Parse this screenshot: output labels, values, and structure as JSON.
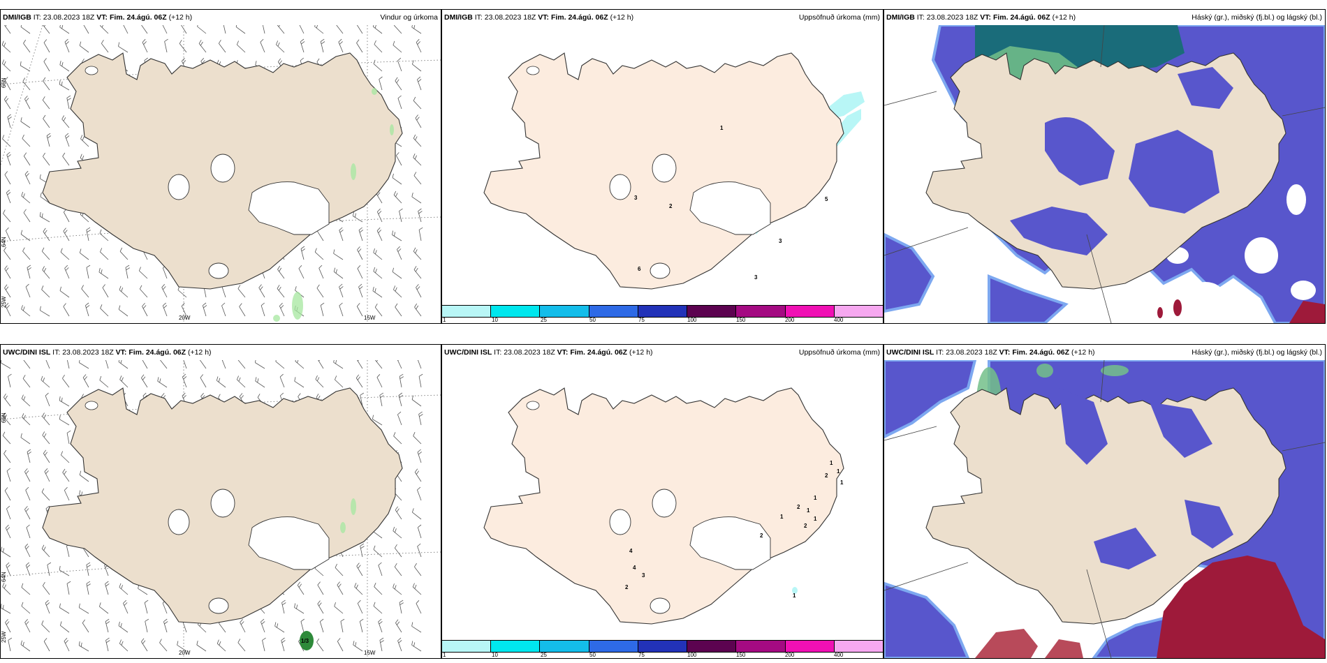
{
  "common": {
    "it_label": "IT:",
    "it_value": "23.08.2023 18Z",
    "vt_label": "VT:",
    "vt_value": "Fim. 24.ágú. 06Z",
    "lead": "(+12 h)"
  },
  "panels": [
    {
      "model": "DMI/IGB",
      "title": "Vindur og úrkoma",
      "kind": "wind"
    },
    {
      "model": "DMI/IGB",
      "title": "Uppsöfnuð úrkoma (mm)",
      "kind": "accum"
    },
    {
      "model": "DMI/IGB",
      "title": "Háský (gr.), miðský (fj.bl.) og lágský (bl.)",
      "kind": "cloud"
    },
    {
      "model": "UWC/DINI ISL",
      "title": "Vindur og úrkoma",
      "kind": "wind"
    },
    {
      "model": "UWC/DINI ISL",
      "title": "Uppsöfnuð úrkoma (mm)",
      "kind": "accum"
    },
    {
      "model": "UWC/DINI ISL",
      "title": "Háský (gr.), miðský (fj.bl.) og lágský (bl.)",
      "kind": "cloud"
    }
  ],
  "map_labels": {
    "lon_20w": "20W",
    "lon_15w": "15W",
    "lat_66n": "66N",
    "lat_64n": "64N",
    "lon_25w": "25W"
  },
  "accum_values": {
    "top": [
      "1",
      "3",
      "2",
      "5",
      "3",
      "3",
      "6"
    ],
    "bottom": [
      "1",
      "2",
      "1",
      "1",
      "1",
      "2",
      "1",
      "1",
      "1",
      "2",
      "2",
      "4",
      "4",
      "3",
      "2",
      "1"
    ]
  },
  "wind_precip_value_bottom": "1/3",
  "colorbar": {
    "ticks": [
      "1",
      "10",
      "25",
      "50",
      "75",
      "100",
      "150",
      "200",
      "400"
    ],
    "colors": [
      "#b8f6f6",
      "#00e7ee",
      "#14bdea",
      "#2e6ae6",
      "#2232b8",
      "#5c0350",
      "#a40a82",
      "#f010b4",
      "#f6a8f0"
    ]
  },
  "colors": {
    "land_wind": "#ecdfcd",
    "land_accum": "#fcecdf",
    "land_cloud": "#ecdfcd",
    "low_cloud": "#5856cc",
    "low_cloud_edge": "#7da8f0",
    "mid_cloud": "#1a6c7a",
    "high_cloud": "#74c08a",
    "high_cloud_red": "#9e1a3a"
  }
}
